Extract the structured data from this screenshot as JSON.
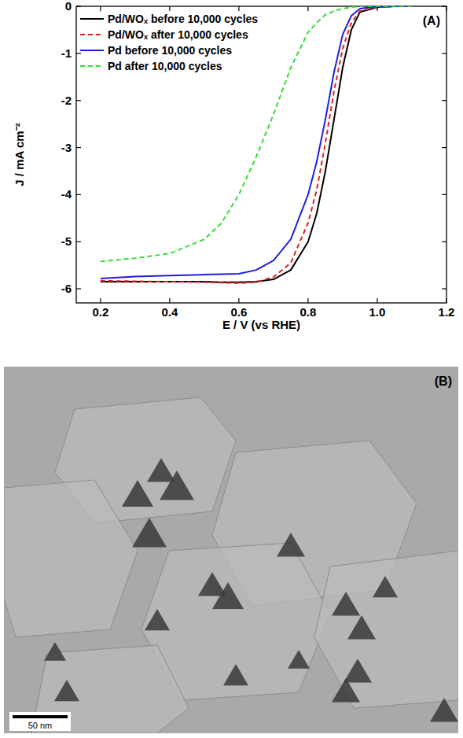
{
  "chart_data": {
    "type": "line",
    "title": "(A)",
    "x_label": "E / V (vs RHE)",
    "y_label": "J / mA cm⁻²",
    "x": [
      0.2,
      0.3,
      0.4,
      0.5,
      0.55,
      0.6,
      0.65,
      0.7,
      0.75,
      0.8,
      0.825,
      0.85,
      0.875,
      0.9,
      0.925,
      0.95,
      1.0,
      1.05,
      1.1
    ],
    "series": [
      {
        "name": "Pd/WOₓ before 10,000 cycles",
        "color": "#000000",
        "line_style": "solid",
        "values": [
          -5.85,
          -5.85,
          -5.85,
          -5.85,
          -5.86,
          -5.86,
          -5.85,
          -5.8,
          -5.6,
          -5.0,
          -4.4,
          -3.5,
          -2.4,
          -1.3,
          -0.5,
          -0.12,
          -0.02,
          0,
          0
        ]
      },
      {
        "name": "Pd/WOₓ after 10,000 cycles",
        "color": "#e3211c",
        "line_style": "dashed",
        "values": [
          -5.83,
          -5.84,
          -5.85,
          -5.86,
          -5.87,
          -5.88,
          -5.86,
          -5.75,
          -5.45,
          -4.6,
          -3.9,
          -2.9,
          -1.8,
          -0.9,
          -0.35,
          -0.1,
          -0.02,
          0,
          0
        ]
      },
      {
        "name": "Pd before 10,000 cycles",
        "color": "#1f1fe0",
        "line_style": "solid",
        "values": [
          -5.78,
          -5.74,
          -5.72,
          -5.7,
          -5.69,
          -5.68,
          -5.6,
          -5.4,
          -4.95,
          -4.0,
          -3.3,
          -2.4,
          -1.4,
          -0.6,
          -0.2,
          -0.05,
          0,
          0,
          0
        ]
      },
      {
        "name": "Pd after 10,000 cycles",
        "color": "#33dd33",
        "line_style": "dashed",
        "values": [
          -5.42,
          -5.35,
          -5.25,
          -4.95,
          -4.6,
          -4.0,
          -3.2,
          -2.3,
          -1.3,
          -0.55,
          -0.35,
          -0.18,
          -0.1,
          -0.05,
          -0.02,
          0,
          0,
          0,
          0
        ]
      }
    ],
    "xlim": [
      0.13,
      1.2
    ],
    "xticks": [
      0.2,
      0.4,
      0.6,
      0.8,
      {
        "value": 1,
        "label": "1.0"
      },
      1.2
    ],
    "ylim": [
      -6.3,
      0
    ],
    "yticks": [
      0,
      -1,
      -2,
      -3,
      -4,
      -5,
      -6
    ],
    "legend": "top-left",
    "grid": false
  },
  "panel_b": {
    "label": "(B)",
    "scale_bar": "50 nm"
  }
}
